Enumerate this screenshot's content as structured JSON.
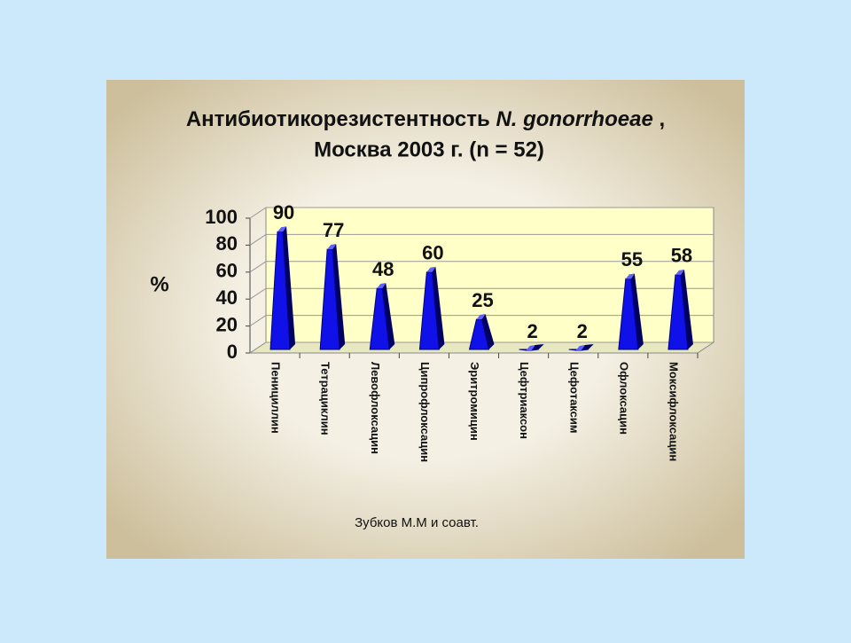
{
  "chart_data": {
    "type": "bar",
    "title": [
      "Антибиотикорезистентность ",
      "N. gonorrhoeae",
      " ,",
      "Москва 2003 г. (n = 52)"
    ],
    "y_label": "%",
    "categories": [
      "Пенициллин",
      "Тетрациклин",
      "Левофлоксацин",
      "Ципрофлоксацин",
      "Эритромицин",
      "Цефтриаксон",
      "Цефотаксим",
      "Офлоксацин",
      "Моксифлоксацин"
    ],
    "values": [
      90,
      77,
      48,
      60,
      25,
      2,
      2,
      55,
      58
    ],
    "color": "#1010e8",
    "ylim": [
      0,
      100
    ],
    "yticks": [
      0,
      20,
      40,
      60,
      80,
      100
    ],
    "grid": true,
    "footnote": "Зубков М.М и соавт."
  }
}
